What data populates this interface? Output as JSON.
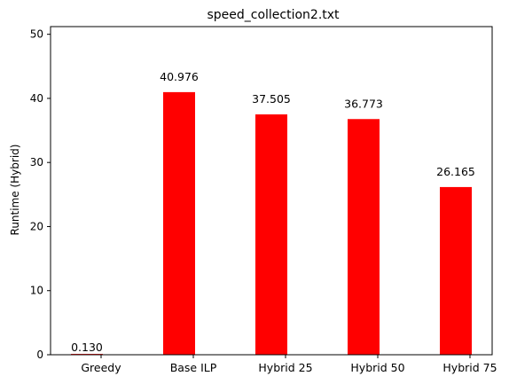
{
  "chart_data": {
    "type": "bar",
    "title": "speed_collection2.txt",
    "xlabel": "",
    "ylabel": "Runtime (Hybrid)",
    "categories": [
      "Greedy",
      "Base ILP",
      "Hybrid 25",
      "Hybrid 50",
      "Hybrid 75"
    ],
    "values": [
      0.13,
      40.976,
      37.505,
      36.773,
      26.165
    ],
    "data_labels": [
      "0.130",
      "40.976",
      "37.505",
      "36.773",
      "26.165"
    ],
    "ylim": [
      0,
      51.2
    ],
    "yticks": [
      0,
      10,
      20,
      30,
      40,
      50
    ],
    "ytick_labels": [
      "0",
      "10",
      "20",
      "30",
      "40",
      "50"
    ],
    "bar_color": "#ff0000",
    "grid": false,
    "legend": "none"
  }
}
